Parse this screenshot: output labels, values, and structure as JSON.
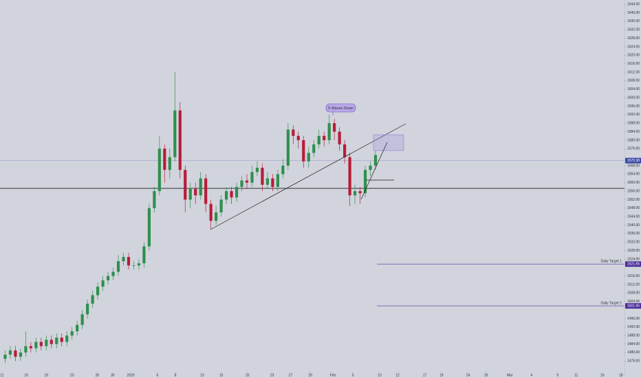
{
  "chart_data": {
    "type": "candlestick",
    "up_color": "#2f8f4e",
    "down_color": "#b71c3a",
    "xlim": [
      -1,
      120
    ],
    "ylim": [
      1468,
      1646
    ],
    "x": [
      0,
      1,
      2,
      3,
      4,
      5,
      6,
      7,
      8,
      9,
      10,
      11,
      12,
      13,
      14,
      15,
      16,
      17,
      18,
      19,
      20,
      21,
      22,
      23,
      24,
      25,
      26,
      27,
      28,
      29,
      30,
      31,
      32,
      33,
      34,
      35,
      36,
      37,
      38,
      39,
      40,
      41,
      42,
      43,
      44,
      45,
      46,
      47,
      48,
      49,
      50,
      51,
      52,
      53,
      54,
      55,
      56,
      57,
      58,
      59,
      60,
      61,
      62,
      63,
      64,
      65,
      66,
      67,
      68,
      69,
      70,
      71,
      72
    ],
    "open": [
      1477,
      1479,
      1481,
      1478,
      1480,
      1483,
      1482,
      1485,
      1483,
      1486,
      1484,
      1487,
      1485,
      1488,
      1490,
      1493,
      1498,
      1503,
      1507,
      1511,
      1514,
      1516,
      1518,
      1523,
      1525,
      1521,
      1521,
      1522,
      1530,
      1548,
      1556,
      1576,
      1566,
      1572,
      1594,
      1566,
      1552,
      1557,
      1554,
      1562,
      1550,
      1542,
      1546,
      1552,
      1556,
      1553,
      1558,
      1561,
      1560,
      1565,
      1567,
      1559,
      1562,
      1558,
      1564,
      1568,
      1585,
      1582,
      1580,
      1570,
      1574,
      1578,
      1582,
      1580,
      1588,
      1584,
      1578,
      1572,
      1554,
      1556,
      1555,
      1566,
      1568
    ],
    "high": [
      1481,
      1483,
      1483,
      1482,
      1490,
      1485,
      1487,
      1487,
      1488,
      1488,
      1489,
      1489,
      1490,
      1492,
      1495,
      1500,
      1505,
      1509,
      1513,
      1516,
      1518,
      1520,
      1526,
      1527,
      1527,
      1523,
      1524,
      1532,
      1550,
      1558,
      1582,
      1578,
      1576,
      1612,
      1598,
      1568,
      1560,
      1560,
      1565,
      1564,
      1552,
      1549,
      1554,
      1558,
      1558,
      1560,
      1563,
      1564,
      1568,
      1570,
      1569,
      1565,
      1564,
      1566,
      1571,
      1588,
      1587,
      1584,
      1582,
      1577,
      1580,
      1585,
      1584,
      1592,
      1590,
      1586,
      1580,
      1574,
      1559,
      1558,
      1568,
      1570,
      1575
    ],
    "low": [
      1475,
      1477,
      1476,
      1476,
      1478,
      1480,
      1480,
      1481,
      1481,
      1482,
      1482,
      1483,
      1483,
      1486,
      1488,
      1491,
      1496,
      1501,
      1505,
      1509,
      1512,
      1514,
      1516,
      1521,
      1519,
      1519,
      1519,
      1520,
      1528,
      1546,
      1554,
      1560,
      1562,
      1570,
      1562,
      1546,
      1548,
      1550,
      1552,
      1546,
      1538,
      1540,
      1544,
      1550,
      1550,
      1551,
      1556,
      1557,
      1558,
      1563,
      1556,
      1557,
      1556,
      1556,
      1562,
      1566,
      1578,
      1576,
      1567,
      1567,
      1572,
      1576,
      1577,
      1578,
      1580,
      1575,
      1569,
      1549,
      1550,
      1550,
      1553,
      1563,
      1566
    ],
    "close": [
      1479,
      1481,
      1478,
      1480,
      1483,
      1482,
      1485,
      1483,
      1486,
      1484,
      1487,
      1485,
      1488,
      1490,
      1493,
      1498,
      1503,
      1507,
      1511,
      1514,
      1516,
      1518,
      1523,
      1525,
      1521,
      1521,
      1522,
      1530,
      1548,
      1556,
      1576,
      1566,
      1572,
      1594,
      1566,
      1552,
      1557,
      1554,
      1562,
      1550,
      1542,
      1546,
      1552,
      1556,
      1553,
      1558,
      1561,
      1560,
      1565,
      1567,
      1559,
      1562,
      1558,
      1564,
      1568,
      1585,
      1582,
      1580,
      1570,
      1574,
      1578,
      1582,
      1580,
      1588,
      1584,
      1578,
      1572,
      1554,
      1556,
      1555,
      1566,
      1568,
      1573
    ],
    "xticks": [
      {
        "value": -0.6,
        "label": "11"
      },
      {
        "value": 4.1,
        "label": "16"
      },
      {
        "value": 8.0,
        "label": "19"
      },
      {
        "value": 13.0,
        "label": "23"
      },
      {
        "value": 17.9,
        "label": "26"
      },
      {
        "value": 20.9,
        "label": "30"
      },
      {
        "value": 24.4,
        "label": "2020"
      },
      {
        "value": 29.6,
        "label": "6"
      },
      {
        "value": 33.1,
        "label": "8"
      },
      {
        "value": 38.3,
        "label": "13"
      },
      {
        "value": 42.0,
        "label": "15"
      },
      {
        "value": 47.1,
        "label": "20"
      },
      {
        "value": 51.9,
        "label": "23"
      },
      {
        "value": 55.5,
        "label": "27"
      },
      {
        "value": 59.3,
        "label": "29"
      },
      {
        "value": 63.7,
        "label": "Feb"
      },
      {
        "value": 67.6,
        "label": "5"
      },
      {
        "value": 72.8,
        "label": "10"
      },
      {
        "value": 76.3,
        "label": "12"
      },
      {
        "value": 81.6,
        "label": "17"
      },
      {
        "value": 84.8,
        "label": "19"
      },
      {
        "value": 90.0,
        "label": "24"
      },
      {
        "value": 93.5,
        "label": "26"
      },
      {
        "value": 98.1,
        "label": "Mar"
      },
      {
        "value": 102.3,
        "label": "4"
      },
      {
        "value": 107.4,
        "label": "9"
      },
      {
        "value": 111.0,
        "label": "11"
      },
      {
        "value": 116.1,
        "label": "16"
      },
      {
        "value": 119.7,
        "label": "18"
      }
    ],
    "yticks": [
      {
        "value": 1644,
        "label": "1644.00"
      },
      {
        "value": 1640,
        "label": "1640.00"
      },
      {
        "value": 1636,
        "label": "1636.00"
      },
      {
        "value": 1632,
        "label": "1632.00"
      },
      {
        "value": 1628,
        "label": "1628.00"
      },
      {
        "value": 1624,
        "label": "1624.00"
      },
      {
        "value": 1620,
        "label": "1620.00"
      },
      {
        "value": 1616,
        "label": "1616.00"
      },
      {
        "value": 1612,
        "label": "1612.00"
      },
      {
        "value": 1608,
        "label": "1608.00"
      },
      {
        "value": 1604,
        "label": "1604.00"
      },
      {
        "value": 1600,
        "label": "1600.00"
      },
      {
        "value": 1596,
        "label": "1596.00"
      },
      {
        "value": 1592,
        "label": "1592.00"
      },
      {
        "value": 1588,
        "label": "1588.00"
      },
      {
        "value": 1584,
        "label": "1584.00"
      },
      {
        "value": 1580,
        "label": "1580.00"
      },
      {
        "value": 1576,
        "label": "1576.00"
      },
      {
        "value": 1568,
        "label": "1568.00"
      },
      {
        "value": 1564,
        "label": "1564.00"
      },
      {
        "value": 1560,
        "label": "1560.00"
      },
      {
        "value": 1556,
        "label": "1556.00"
      },
      {
        "value": 1552,
        "label": "1552.00"
      },
      {
        "value": 1548,
        "label": "1548.00"
      },
      {
        "value": 1544,
        "label": "1544.00"
      },
      {
        "value": 1540,
        "label": "1540.00"
      },
      {
        "value": 1536,
        "label": "1536.00"
      },
      {
        "value": 1532,
        "label": "1532.00"
      },
      {
        "value": 1528,
        "label": "1528.00"
      },
      {
        "value": 1524,
        "label": "1524.00"
      },
      {
        "value": 1516,
        "label": "1516.00"
      },
      {
        "value": 1512,
        "label": "1512.00"
      },
      {
        "value": 1508,
        "label": "1508.00"
      },
      {
        "value": 1504,
        "label": "1504.00"
      },
      {
        "value": 1496,
        "label": "1496.00"
      },
      {
        "value": 1492,
        "label": "1492.00"
      },
      {
        "value": 1488,
        "label": "1488.00"
      },
      {
        "value": 1484,
        "label": "1484.00"
      },
      {
        "value": 1480,
        "label": "1480.00"
      },
      {
        "value": 1476,
        "label": "1476.00"
      }
    ],
    "last_price": 1570.38,
    "last_price_color": "#3b4aa8",
    "support_level": 1557.3,
    "levels": [
      {
        "label": "Daily Target 1",
        "value": 1521.65,
        "color": "#4b2f9c"
      },
      {
        "label": "Daily Target 2",
        "value": 1501.95,
        "color": "#4b2f9c"
      }
    ],
    "annotation": "5 Waves Down"
  }
}
